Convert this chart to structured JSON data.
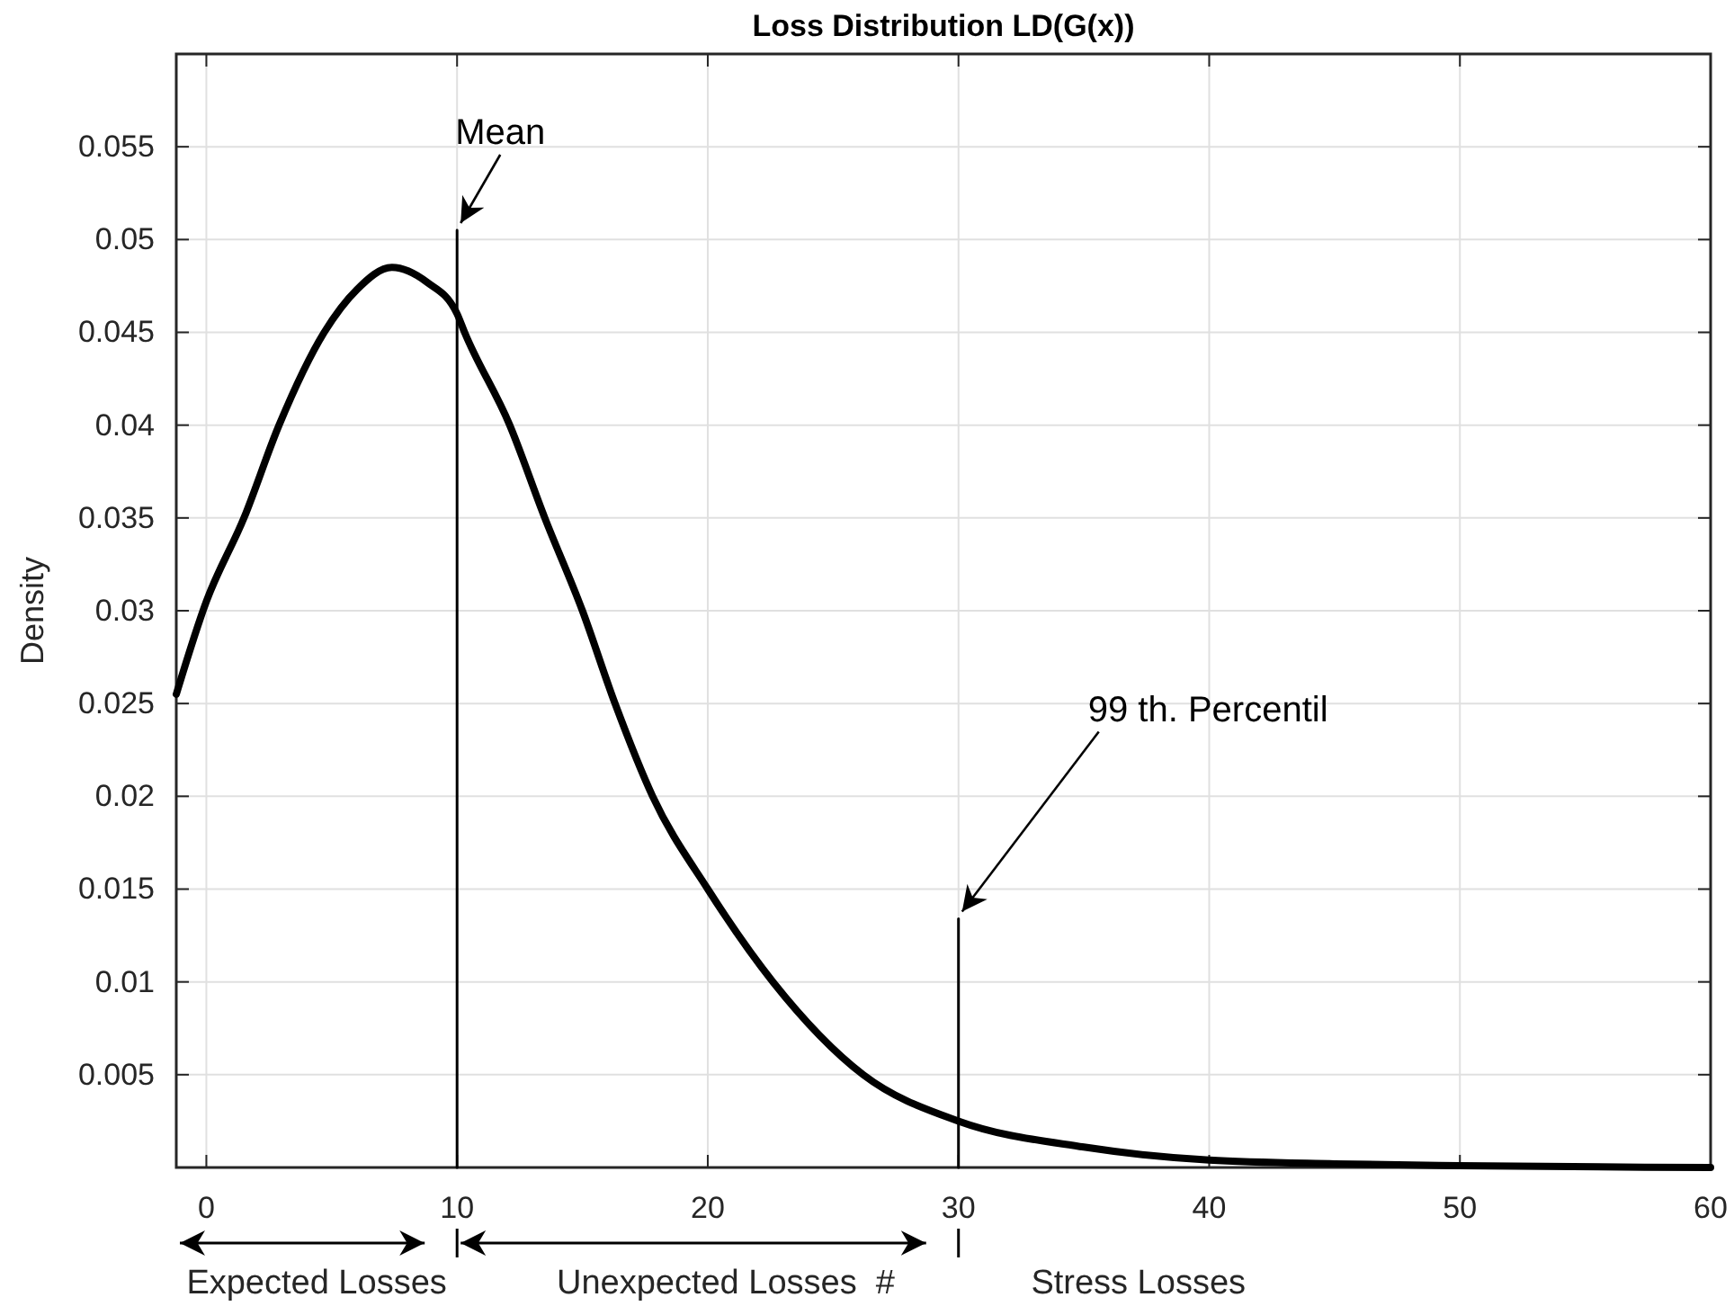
{
  "chart_data": {
    "type": "line",
    "title": "Loss Distribution LD(G(x))",
    "ylabel": "Density",
    "xlim": [
      -1.2,
      60
    ],
    "ylim": [
      0,
      0.06
    ],
    "xticks": [
      0,
      10,
      20,
      30,
      40,
      50,
      60
    ],
    "yticks": [
      0.005,
      0.01,
      0.015,
      0.02,
      0.025,
      0.03,
      0.035,
      0.04,
      0.045,
      0.05,
      0.055
    ],
    "grid": true,
    "marker": "none",
    "line_style": "solid",
    "series": [
      {
        "color": "#000000",
        "x": [
          -1.2,
          0,
          1.5,
          2.9,
          4.7,
          6,
          7.4,
          8.8,
          10,
          10.3,
          12.1,
          13.5,
          15,
          16.3,
          17.8,
          20,
          22.6,
          26.2,
          30,
          35,
          40,
          45,
          50,
          60
        ],
        "values": [
          0.0255,
          0.0305,
          0.035,
          0.04,
          0.045,
          0.0473,
          0.0485,
          0.0477,
          0.046,
          0.045,
          0.04,
          0.035,
          0.03,
          0.025,
          0.02,
          0.015,
          0.01,
          0.005,
          0.0025,
          0.0011,
          0.0004,
          0.0002,
          0.0001,
          0
        ]
      },
      {
        "color": "#000000",
        "x": [
          10,
          10
        ],
        "values": [
          0,
          0.0505
        ]
      },
      {
        "color": "#000000",
        "x": [
          30,
          30
        ],
        "values": [
          0,
          0.0134
        ]
      }
    ],
    "annotations": [
      {
        "text": "Mean",
        "x": 10,
        "y": 0.0505
      },
      {
        "text": "99 th. Percentil",
        "x": 30,
        "y": 0.0134
      },
      "Expected Losses",
      "Unexpected Losses  #",
      "Stress Losses"
    ]
  }
}
